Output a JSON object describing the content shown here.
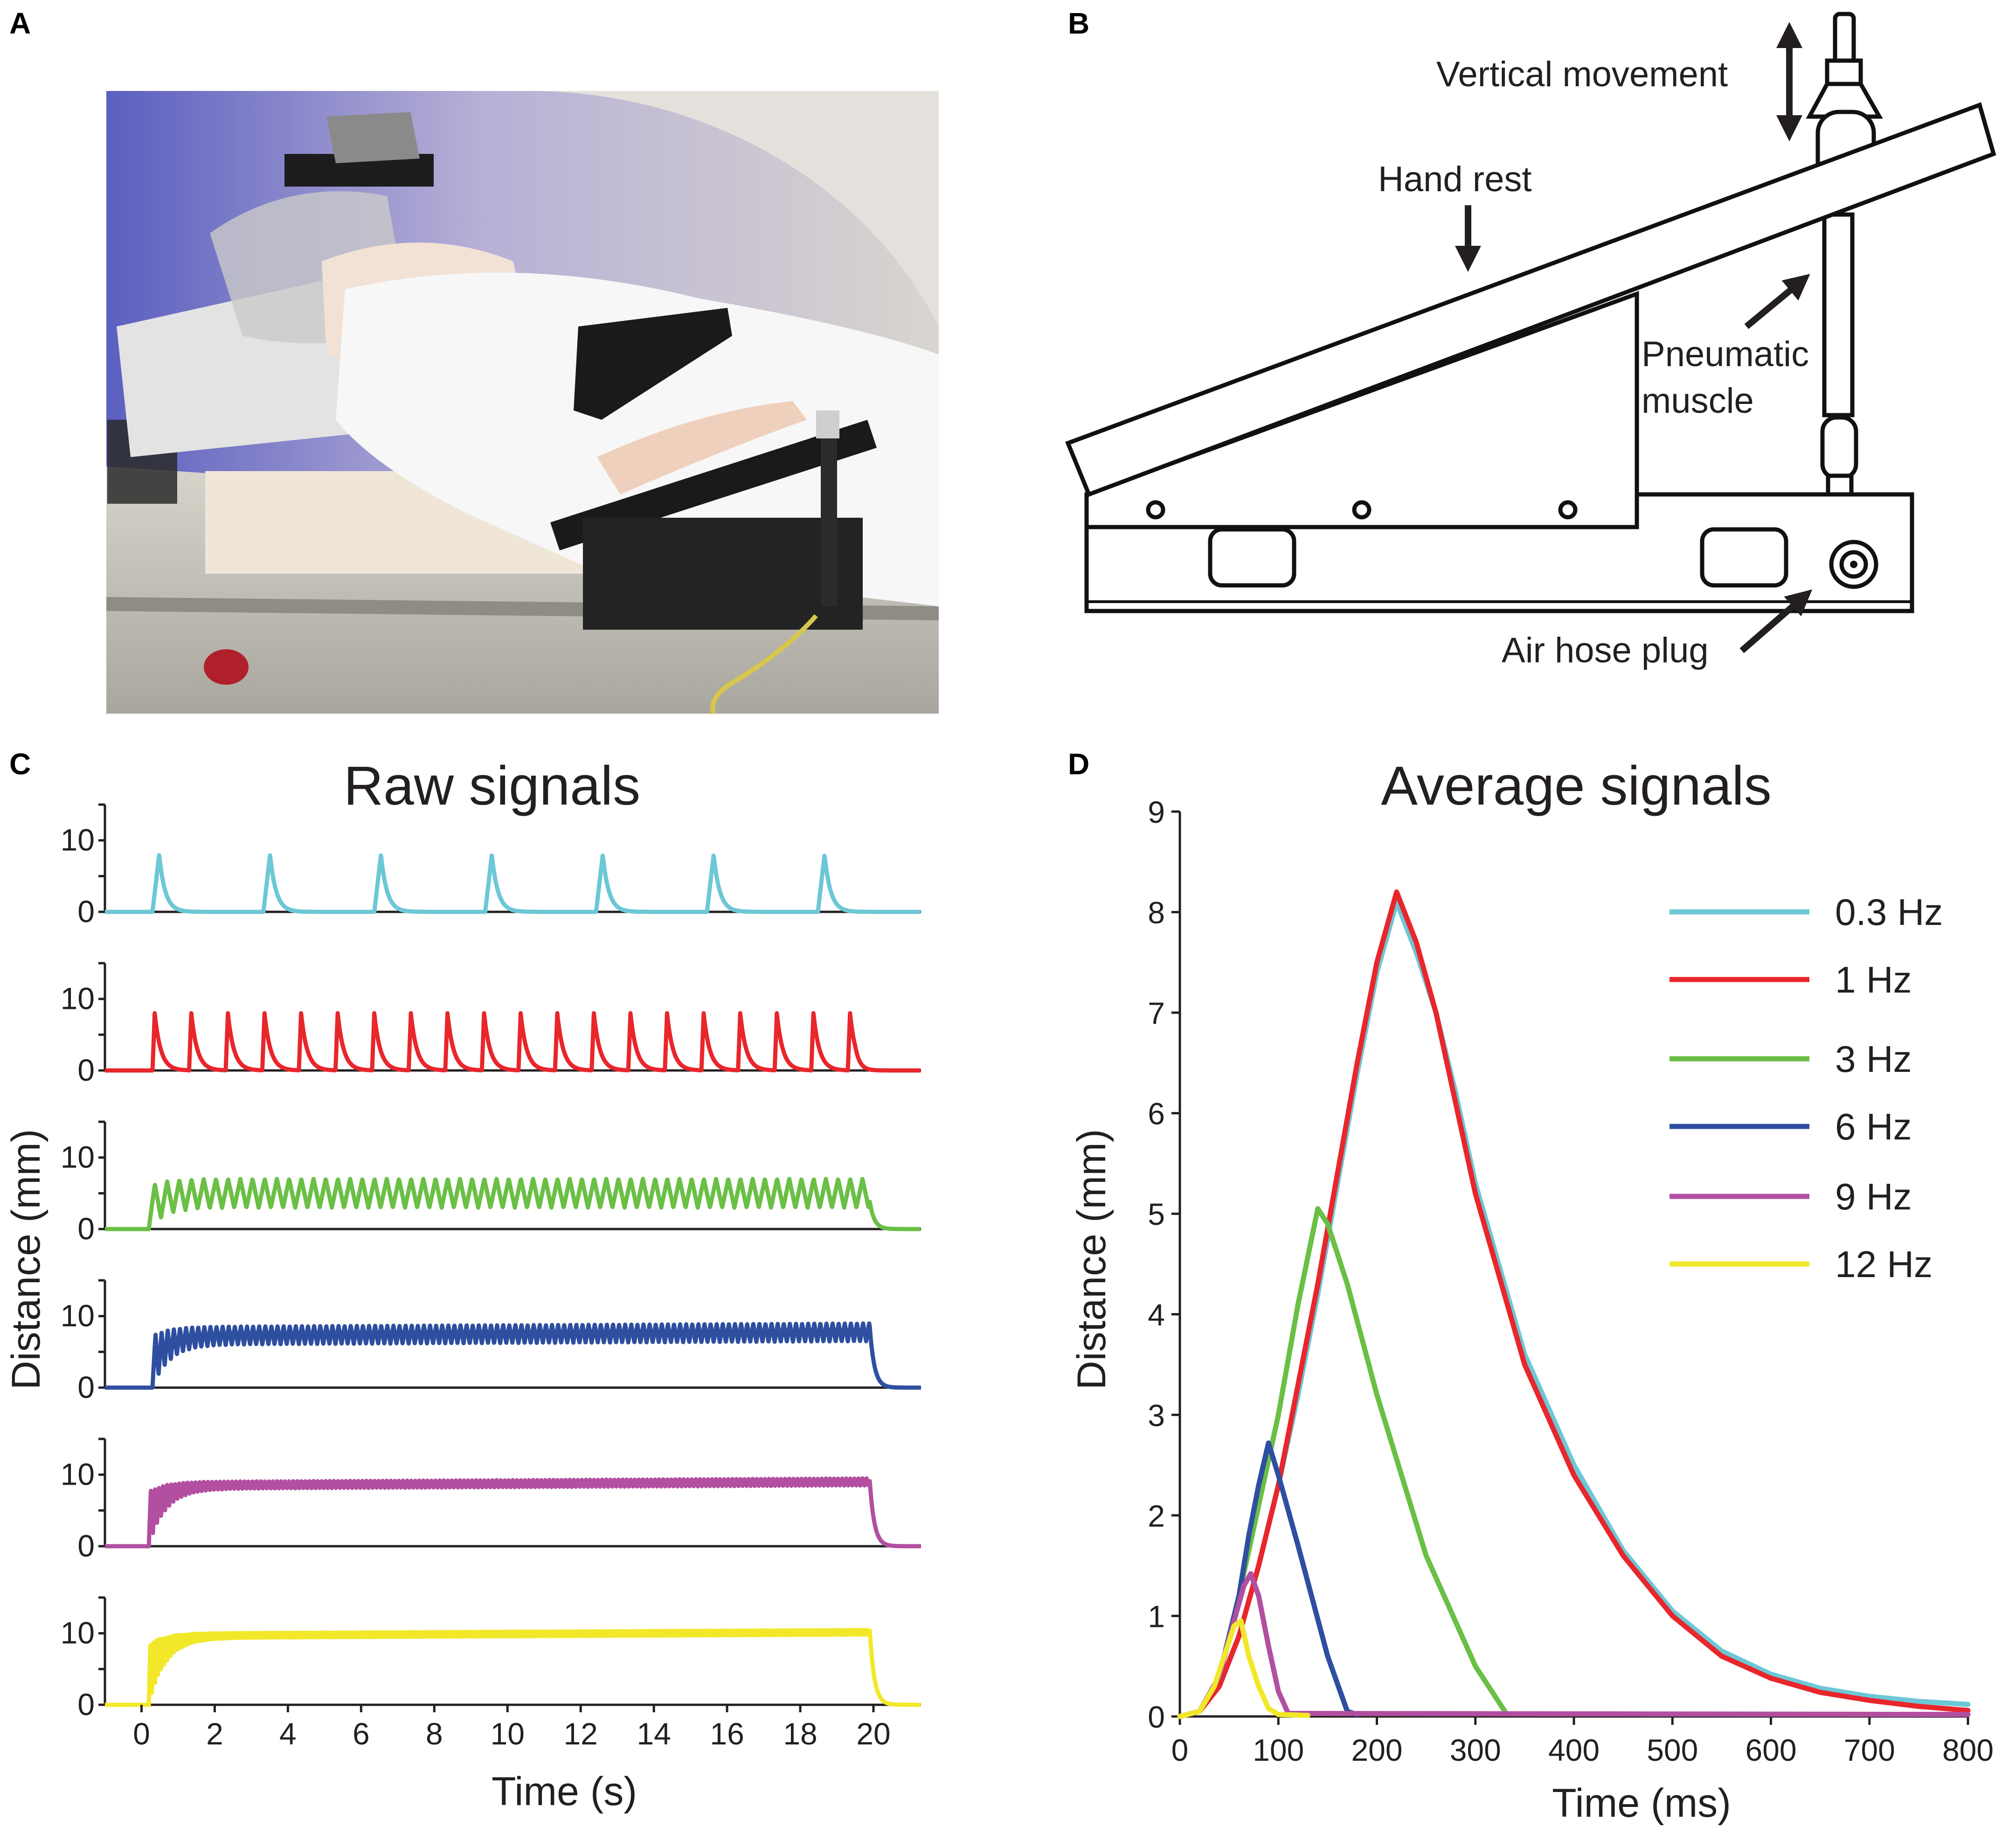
{
  "panels": {
    "a": {
      "label": "A"
    },
    "b": {
      "label": "B",
      "annotations": {
        "vertical_movement": "Vertical movement",
        "hand_rest": "Hand rest",
        "pneumatic_1": "Pneumatic",
        "pneumatic_2": "muscle",
        "air_hose_plug": "Air hose plug"
      }
    },
    "c": {
      "label": "C"
    },
    "d": {
      "label": "D"
    }
  },
  "chart_data": [
    {
      "type": "line",
      "panel": "C",
      "title": "Raw signals",
      "xlabel": "Time (s)",
      "ylabel": "Distance (mm)",
      "xlim": [
        -1,
        21.3
      ],
      "ylim": [
        0,
        15
      ],
      "xticks": [
        "0",
        "2",
        "4",
        "6",
        "8",
        "10",
        "12",
        "14",
        "16",
        "18",
        "20"
      ],
      "yticks": [
        "0",
        "10"
      ],
      "series": [
        {
          "name": "0.3 Hz",
          "color": "#6cc7d6",
          "freq_hz": 0.33,
          "start_s": 0.3,
          "end_s": 20,
          "peak_mm": 8,
          "trough_mm": 0
        },
        {
          "name": "1 Hz",
          "color": "#e8262b",
          "freq_hz": 1,
          "start_s": 0.3,
          "end_s": 19.5,
          "peak_mm": 8,
          "trough_mm": 0
        },
        {
          "name": "3 Hz",
          "color": "#6abf45",
          "freq_hz": 3,
          "start_s": 0.2,
          "end_s": 19.9,
          "peak_mm": 7,
          "trough_mm": 3
        },
        {
          "name": "6 Hz",
          "color": "#2e4fa0",
          "freq_hz": 6,
          "start_s": 0.3,
          "end_s": 19.9,
          "peak_mm": 8.5,
          "trough_mm": 6
        },
        {
          "name": "9 Hz",
          "color": "#b24fa0",
          "freq_hz": 9,
          "start_s": 0.2,
          "end_s": 19.9,
          "peak_mm": 9,
          "trough_mm": 8
        },
        {
          "name": "12 Hz",
          "color": "#f2e829",
          "freq_hz": 12,
          "start_s": 0.2,
          "end_s": 19.9,
          "peak_mm": 10,
          "trough_mm": 9.3
        }
      ]
    },
    {
      "type": "line",
      "panel": "D",
      "title": "Average signals",
      "xlabel": "Time (ms)",
      "ylabel": "Distance (mm)",
      "xlim": [
        0,
        800
      ],
      "ylim": [
        0,
        9
      ],
      "xticks": [
        "0",
        "100",
        "200",
        "300",
        "400",
        "500",
        "600",
        "700",
        "800"
      ],
      "yticks": [
        "0",
        "1",
        "2",
        "3",
        "4",
        "5",
        "6",
        "7",
        "8",
        "9"
      ],
      "legend_position": "top-right",
      "series": [
        {
          "name": "0.3 Hz",
          "color": "#6cc7d6",
          "x": [
            0,
            20,
            40,
            60,
            80,
            100,
            120,
            140,
            160,
            180,
            200,
            220,
            240,
            260,
            280,
            300,
            350,
            400,
            450,
            500,
            550,
            600,
            650,
            700,
            750,
            800
          ],
          "y": [
            0,
            0.05,
            0.3,
            0.8,
            1.5,
            2.3,
            3.2,
            4.2,
            5.3,
            6.4,
            7.4,
            8.1,
            7.6,
            7.0,
            6.2,
            5.3,
            3.6,
            2.5,
            1.65,
            1.05,
            0.65,
            0.42,
            0.28,
            0.2,
            0.15,
            0.12
          ]
        },
        {
          "name": "1 Hz",
          "color": "#e8262b",
          "x": [
            0,
            20,
            40,
            60,
            80,
            100,
            120,
            140,
            160,
            180,
            200,
            220,
            240,
            260,
            280,
            300,
            350,
            400,
            450,
            500,
            550,
            600,
            650,
            700,
            750,
            800
          ],
          "y": [
            0,
            0.05,
            0.3,
            0.8,
            1.5,
            2.3,
            3.3,
            4.3,
            5.4,
            6.5,
            7.5,
            8.2,
            7.7,
            7.0,
            6.1,
            5.2,
            3.5,
            2.4,
            1.6,
            1.0,
            0.6,
            0.38,
            0.24,
            0.16,
            0.1,
            0.06
          ]
        },
        {
          "name": "3 Hz",
          "color": "#6abf45",
          "x": [
            0,
            20,
            40,
            60,
            80,
            100,
            120,
            140,
            150,
            170,
            200,
            250,
            300,
            330
          ],
          "y": [
            0,
            0.05,
            0.4,
            1.2,
            2.1,
            3.0,
            4.1,
            5.05,
            4.9,
            4.3,
            3.2,
            1.6,
            0.5,
            0.05
          ]
        },
        {
          "name": "6 Hz",
          "color": "#2e4fa0",
          "x": [
            0,
            20,
            40,
            60,
            70,
            80,
            90,
            100,
            120,
            150,
            170,
            180
          ],
          "y": [
            0,
            0.05,
            0.4,
            1.2,
            1.8,
            2.3,
            2.72,
            2.4,
            1.7,
            0.6,
            0.05,
            0.02
          ]
        },
        {
          "name": "9 Hz",
          "color": "#b24fa0",
          "x": [
            0,
            20,
            40,
            55,
            65,
            72,
            80,
            90,
            100,
            110,
            800
          ],
          "y": [
            0,
            0.05,
            0.4,
            0.95,
            1.3,
            1.42,
            1.2,
            0.7,
            0.25,
            0.03,
            0.02
          ]
        },
        {
          "name": "12 Hz",
          "color": "#f2e829",
          "x": [
            0,
            20,
            35,
            45,
            55,
            62,
            70,
            80,
            90,
            100,
            130
          ],
          "y": [
            0,
            0.05,
            0.3,
            0.6,
            0.9,
            0.95,
            0.6,
            0.3,
            0.08,
            0.02,
            0.01
          ]
        }
      ]
    }
  ]
}
